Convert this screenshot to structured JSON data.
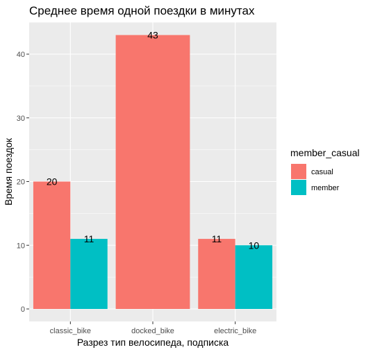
{
  "chart_data": {
    "type": "bar",
    "title": "Среднее время одной поездки в минутах",
    "xlabel": "Разрез тип велосипеда, подписка",
    "ylabel": "Время поездок",
    "categories": [
      "classic_bike",
      "docked_bike",
      "electric_bike"
    ],
    "series": [
      {
        "name": "casual",
        "color": "#F8766D",
        "values": [
          20,
          43,
          11
        ]
      },
      {
        "name": "member",
        "color": "#00BFC4",
        "values": [
          11,
          null,
          10
        ]
      }
    ],
    "data_labels": [
      [
        "20",
        "43",
        "11"
      ],
      [
        "11",
        null,
        "10"
      ]
    ],
    "ylim": [
      0,
      45
    ],
    "yticks": [
      0,
      10,
      20,
      30,
      40
    ],
    "legend": {
      "title": "member_casual",
      "position": "right"
    },
    "grid": true
  }
}
